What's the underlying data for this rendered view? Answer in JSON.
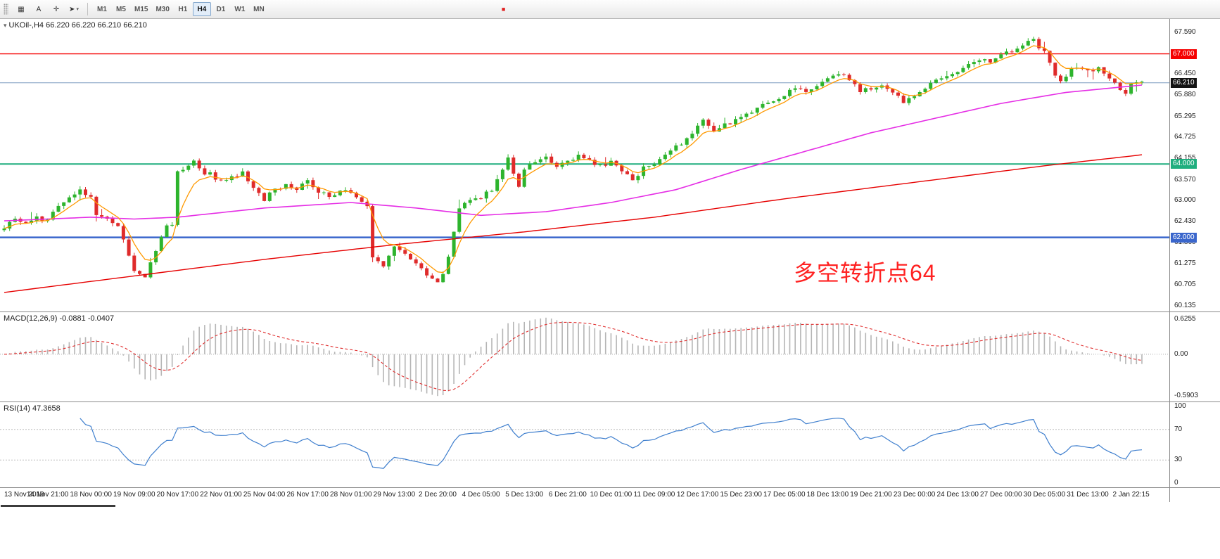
{
  "window": {
    "symbol_title": "UKOil-,H4 66.220 66.220 66.210 66.210",
    "collapse_icon": "▾"
  },
  "toolbar": {
    "tools": [
      {
        "name": "charts-grid",
        "glyph": "▦"
      },
      {
        "name": "annotate-text",
        "glyph": "A"
      },
      {
        "name": "crosshair",
        "glyph": "✛"
      },
      {
        "name": "cursor-tool",
        "glyph": "➤",
        "caret": true
      }
    ],
    "caret": "▾",
    "timeframes": [
      "M1",
      "M5",
      "M15",
      "M30",
      "H1",
      "H4",
      "D1",
      "W1",
      "MN"
    ],
    "active_timeframe": "H4",
    "extra": {
      "glyph": "■"
    }
  },
  "colors": {
    "up": "#2db42d",
    "down": "#df2b2b",
    "ma_fast": "#ff9900",
    "ma_mid": "#e52ee5",
    "ma_slow": "#e60000",
    "macd_hist": "#b5b5b5",
    "macd_signal": "#e03030",
    "rsi": "#3f7fce"
  },
  "chart": {
    "annotation": "多空转折点64",
    "price_max": 67.95,
    "price_min": 60.0,
    "candle_count": 211,
    "candle_spacing": 7.7,
    "first_candle_x": 6,
    "noise_seed": 7,
    "noise_amp": 0.06,
    "ma_fast_period": 6,
    "hlines": [
      {
        "price": 67.0,
        "color": "#f50000",
        "width": 1.4
      },
      {
        "price": 66.21,
        "color": "#7a9abf",
        "width": 1
      },
      {
        "price": 64.0,
        "color": "#1fae7e",
        "width": 2
      },
      {
        "price": 62.0,
        "color": "#3a66cc",
        "width": 2.5
      }
    ],
    "y_ticks": [
      {
        "label": "67.590",
        "price": 67.59
      },
      {
        "label": "66.450",
        "price": 66.45
      },
      {
        "label": "65.880",
        "price": 65.88
      },
      {
        "label": "65.295",
        "price": 65.295
      },
      {
        "label": "64.725",
        "price": 64.725
      },
      {
        "label": "64.155",
        "price": 64.155
      },
      {
        "label": "63.570",
        "price": 63.57
      },
      {
        "label": "63.000",
        "price": 63.0
      },
      {
        "label": "62.430",
        "price": 62.43
      },
      {
        "label": "61.860",
        "price": 61.86
      },
      {
        "label": "61.275",
        "price": 61.275
      },
      {
        "label": "60.705",
        "price": 60.705
      },
      {
        "label": "60.135",
        "price": 60.135
      }
    ],
    "badges": [
      {
        "label": "67.000",
        "price": 67.0,
        "bg": "#f50000"
      },
      {
        "label": "66.210",
        "price": 66.21,
        "bg": "#141414"
      },
      {
        "label": "64.000",
        "price": 64.0,
        "bg": "#1fae7e"
      },
      {
        "label": "62.000",
        "price": 62.0,
        "bg": "#3a66cc"
      }
    ],
    "close_anchors": [
      [
        0,
        62.3
      ],
      [
        2,
        62.55
      ],
      [
        4,
        62.35
      ],
      [
        6,
        62.55
      ],
      [
        8,
        62.45
      ],
      [
        10,
        62.9
      ],
      [
        12,
        63.05
      ],
      [
        14,
        63.25
      ],
      [
        16,
        63.1
      ],
      [
        17,
        62.6
      ],
      [
        19,
        62.45
      ],
      [
        21,
        62.3
      ],
      [
        22,
        61.9
      ],
      [
        24,
        61.05
      ],
      [
        26,
        60.95
      ],
      [
        28,
        61.6
      ],
      [
        30,
        62.35
      ],
      [
        31,
        62.3
      ],
      [
        32,
        63.75
      ],
      [
        34,
        63.95
      ],
      [
        35,
        64.05
      ],
      [
        37,
        63.7
      ],
      [
        38,
        63.75
      ],
      [
        40,
        63.5
      ],
      [
        42,
        63.65
      ],
      [
        44,
        63.75
      ],
      [
        46,
        63.3
      ],
      [
        48,
        63.05
      ],
      [
        50,
        63.3
      ],
      [
        52,
        63.45
      ],
      [
        54,
        63.35
      ],
      [
        56,
        63.5
      ],
      [
        58,
        63.25
      ],
      [
        60,
        63.1
      ],
      [
        62,
        63.3
      ],
      [
        64,
        63.2
      ],
      [
        66,
        62.95
      ],
      [
        67,
        62.85
      ],
      [
        68,
        61.45
      ],
      [
        70,
        61.15
      ],
      [
        71,
        61.5
      ],
      [
        72,
        61.7
      ],
      [
        74,
        61.55
      ],
      [
        76,
        61.3
      ],
      [
        78,
        60.95
      ],
      [
        80,
        60.72
      ],
      [
        81,
        61.0
      ],
      [
        82,
        61.45
      ],
      [
        83,
        62.1
      ],
      [
        84,
        62.85
      ],
      [
        86,
        63.0
      ],
      [
        88,
        63.1
      ],
      [
        90,
        63.3
      ],
      [
        92,
        63.9
      ],
      [
        93,
        64.15
      ],
      [
        94,
        63.7
      ],
      [
        95,
        63.4
      ],
      [
        96,
        63.9
      ],
      [
        98,
        64.05
      ],
      [
        100,
        64.15
      ],
      [
        102,
        63.95
      ],
      [
        104,
        64.05
      ],
      [
        106,
        64.2
      ],
      [
        108,
        64.1
      ],
      [
        110,
        63.95
      ],
      [
        112,
        64.05
      ],
      [
        114,
        63.85
      ],
      [
        116,
        63.55
      ],
      [
        118,
        63.9
      ],
      [
        120,
        64.0
      ],
      [
        122,
        64.2
      ],
      [
        124,
        64.45
      ],
      [
        126,
        64.7
      ],
      [
        128,
        65.05
      ],
      [
        129,
        65.25
      ],
      [
        131,
        64.9
      ],
      [
        133,
        65.05
      ],
      [
        136,
        65.3
      ],
      [
        138,
        65.45
      ],
      [
        140,
        65.6
      ],
      [
        142,
        65.75
      ],
      [
        144,
        65.9
      ],
      [
        146,
        66.1
      ],
      [
        148,
        65.95
      ],
      [
        150,
        66.15
      ],
      [
        152,
        66.35
      ],
      [
        154,
        66.5
      ],
      [
        156,
        66.3
      ],
      [
        158,
        66.0
      ],
      [
        160,
        66.05
      ],
      [
        162,
        66.2
      ],
      [
        164,
        66.0
      ],
      [
        166,
        65.65
      ],
      [
        168,
        65.85
      ],
      [
        170,
        66.1
      ],
      [
        172,
        66.25
      ],
      [
        174,
        66.4
      ],
      [
        176,
        66.55
      ],
      [
        178,
        66.7
      ],
      [
        180,
        66.85
      ],
      [
        182,
        66.8
      ],
      [
        184,
        66.95
      ],
      [
        186,
        67.1
      ],
      [
        188,
        67.25
      ],
      [
        190,
        67.4
      ],
      [
        191,
        67.15
      ],
      [
        192,
        67.05
      ],
      [
        193,
        66.7
      ],
      [
        194,
        66.45
      ],
      [
        195,
        66.25
      ],
      [
        196,
        66.35
      ],
      [
        197,
        66.55
      ],
      [
        198,
        66.65
      ],
      [
        200,
        66.5
      ],
      [
        202,
        66.65
      ],
      [
        204,
        66.35
      ],
      [
        206,
        66.05
      ],
      [
        207,
        65.95
      ],
      [
        208,
        66.15
      ],
      [
        210,
        66.21
      ]
    ],
    "ma_mid_anchors": [
      [
        0,
        62.45
      ],
      [
        16,
        62.55
      ],
      [
        24,
        62.5
      ],
      [
        32,
        62.55
      ],
      [
        48,
        62.8
      ],
      [
        64,
        62.95
      ],
      [
        76,
        62.8
      ],
      [
        88,
        62.6
      ],
      [
        100,
        62.7
      ],
      [
        112,
        62.95
      ],
      [
        124,
        63.3
      ],
      [
        136,
        63.85
      ],
      [
        148,
        64.35
      ],
      [
        160,
        64.85
      ],
      [
        172,
        65.25
      ],
      [
        184,
        65.65
      ],
      [
        196,
        65.95
      ],
      [
        210,
        66.15
      ]
    ],
    "ma_slow_anchors": [
      [
        0,
        60.5
      ],
      [
        24,
        60.95
      ],
      [
        48,
        61.4
      ],
      [
        72,
        61.8
      ],
      [
        96,
        62.15
      ],
      [
        120,
        62.55
      ],
      [
        144,
        63.05
      ],
      [
        168,
        63.5
      ],
      [
        192,
        63.95
      ],
      [
        210,
        64.25
      ]
    ]
  },
  "macd": {
    "title": "MACD(12,26,9) -0.0881 -0.0407",
    "fast": 12,
    "slow": 26,
    "signal": 9,
    "ticks": {
      "top": "0.6255",
      "zero": "0.00",
      "bottom": "-0.5903"
    }
  },
  "rsi": {
    "title": "RSI(14) 47.3658",
    "period": 14,
    "levels": [
      70,
      30
    ],
    "ticks": [
      {
        "label": "100",
        "value": 100
      },
      {
        "label": "70",
        "value": 70
      },
      {
        "label": "30",
        "value": 30
      },
      {
        "label": "0",
        "value": 0
      }
    ]
  },
  "time_axis": {
    "labels": [
      {
        "text": "13 Nov 2019",
        "index": 0
      },
      {
        "text": "14 Nov 21:00",
        "index": 8
      },
      {
        "text": "18 Nov 00:00",
        "index": 16
      },
      {
        "text": "19 Nov 09:00",
        "index": 24
      },
      {
        "text": "20 Nov 17:00",
        "index": 32
      },
      {
        "text": "22 Nov 01:00",
        "index": 40
      },
      {
        "text": "25 Nov 04:00",
        "index": 48
      },
      {
        "text": "26 Nov 17:00",
        "index": 56
      },
      {
        "text": "28 Nov 01:00",
        "index": 64
      },
      {
        "text": "29 Nov 13:00",
        "index": 72
      },
      {
        "text": "2 Dec 20:00",
        "index": 80
      },
      {
        "text": "4 Dec 05:00",
        "index": 88
      },
      {
        "text": "5 Dec 13:00",
        "index": 96
      },
      {
        "text": "6 Dec 21:00",
        "index": 104
      },
      {
        "text": "10 Dec 01:00",
        "index": 112
      },
      {
        "text": "11 Dec 09:00",
        "index": 120
      },
      {
        "text": "12 Dec 17:00",
        "index": 128
      },
      {
        "text": "15 Dec 23:00",
        "index": 136
      },
      {
        "text": "17 Dec 05:00",
        "index": 144
      },
      {
        "text": "18 Dec 13:00",
        "index": 152
      },
      {
        "text": "19 Dec 21:00",
        "index": 160
      },
      {
        "text": "23 Dec 00:00",
        "index": 168
      },
      {
        "text": "24 Dec 13:00",
        "index": 176
      },
      {
        "text": "27 Dec 00:00",
        "index": 184
      },
      {
        "text": "30 Dec 05:00",
        "index": 192
      },
      {
        "text": "31 Dec 13:00",
        "index": 200
      },
      {
        "text": "2 Jan 22:15",
        "index": 208
      }
    ]
  }
}
